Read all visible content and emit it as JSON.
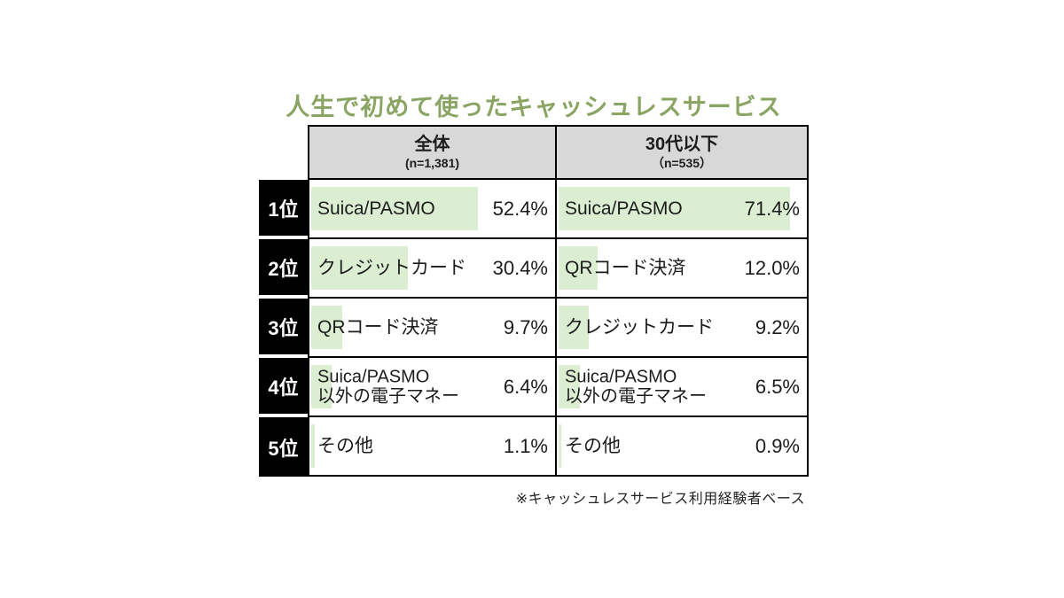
{
  "title": "人生で初めて使ったキャッシュレスサービス",
  "footnote": "※キャッシュレスサービス利用経験者ベース",
  "colors": {
    "title_green": "#8aa563",
    "header_gray": "#d8d8d8",
    "bar_green": "#dbeed2",
    "rank_black": "#000000"
  },
  "table": {
    "bar_scale_max": 77,
    "columns": [
      {
        "label": "全体",
        "sample": "(n=1,381)"
      },
      {
        "label": "30代以下",
        "sample": "（n=535）"
      }
    ],
    "rows": [
      {
        "rank": "1位",
        "cells": [
          {
            "label": "Suica/PASMO",
            "value": 52.4,
            "display": "52.4%"
          },
          {
            "label": "Suica/PASMO",
            "value": 71.4,
            "display": "71.4%"
          }
        ]
      },
      {
        "rank": "2位",
        "cells": [
          {
            "label": "クレジットカード",
            "value": 30.4,
            "display": "30.4%"
          },
          {
            "label": "QRコード決済",
            "value": 12.0,
            "display": "12.0%"
          }
        ]
      },
      {
        "rank": "3位",
        "cells": [
          {
            "label": "QRコード決済",
            "value": 9.7,
            "display": "9.7%"
          },
          {
            "label": "クレジットカード",
            "value": 9.2,
            "display": "9.2%"
          }
        ]
      },
      {
        "rank": "4位",
        "cells": [
          {
            "label": "Suica/PASMO",
            "label2": "以外の電子マネー",
            "value": 6.4,
            "display": "6.4%"
          },
          {
            "label": "Suica/PASMO",
            "label2": "以外の電子マネー",
            "value": 6.5,
            "display": "6.5%"
          }
        ]
      },
      {
        "rank": "5位",
        "cells": [
          {
            "label": "その他",
            "value": 1.1,
            "display": "1.1%"
          },
          {
            "label": "その他",
            "value": 0.9,
            "display": "0.9%"
          }
        ]
      }
    ]
  },
  "chart_data": {
    "type": "table",
    "title": "人生で初めて使ったキャッシュレスサービス",
    "note": "※キャッシュレスサービス利用経験者ベース",
    "bars": "light-green horizontal bars behind labels, width proportional to percent (full cell ≈ 77%)",
    "groups": [
      {
        "name": "全体",
        "n": 1381,
        "ranking": [
          {
            "rank": 1,
            "label": "Suica/PASMO",
            "pct": 52.4
          },
          {
            "rank": 2,
            "label": "クレジットカード",
            "pct": 30.4
          },
          {
            "rank": 3,
            "label": "QRコード決済",
            "pct": 9.7
          },
          {
            "rank": 4,
            "label": "Suica/PASMO以外の電子マネー",
            "pct": 6.4
          },
          {
            "rank": 5,
            "label": "その他",
            "pct": 1.1
          }
        ]
      },
      {
        "name": "30代以下",
        "n": 535,
        "ranking": [
          {
            "rank": 1,
            "label": "Suica/PASMO",
            "pct": 71.4
          },
          {
            "rank": 2,
            "label": "QRコード決済",
            "pct": 12.0
          },
          {
            "rank": 3,
            "label": "クレジットカード",
            "pct": 9.2
          },
          {
            "rank": 4,
            "label": "Suica/PASMO以外の電子マネー",
            "pct": 6.5
          },
          {
            "rank": 5,
            "label": "その他",
            "pct": 0.9
          }
        ]
      }
    ]
  }
}
